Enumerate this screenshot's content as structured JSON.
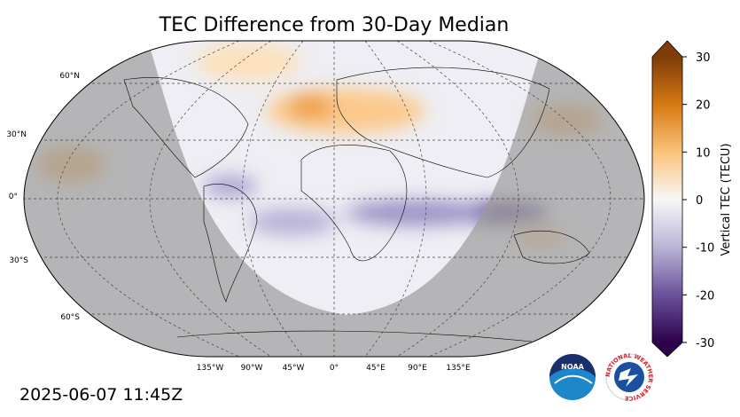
{
  "title": "TEC Difference from 30-Day Median",
  "map": {
    "lat_labels": [
      "60°N",
      "30°N",
      "0°",
      "30°S",
      "60°S"
    ],
    "lon_labels": [
      "135°W",
      "90°W",
      "45°W",
      "0°",
      "45°E",
      "90°E",
      "135°E"
    ]
  },
  "colorbar": {
    "label": "Vertical TEC (TECU)",
    "lim": [
      -30,
      30
    ],
    "ticks": [
      30,
      20,
      10,
      0,
      -10,
      -20,
      -30
    ]
  },
  "timestamp": "2025-06-07 11:45Z",
  "logos": {
    "noaa": "NOAA",
    "nws": "NATIONAL WEATHER SERVICE"
  }
}
